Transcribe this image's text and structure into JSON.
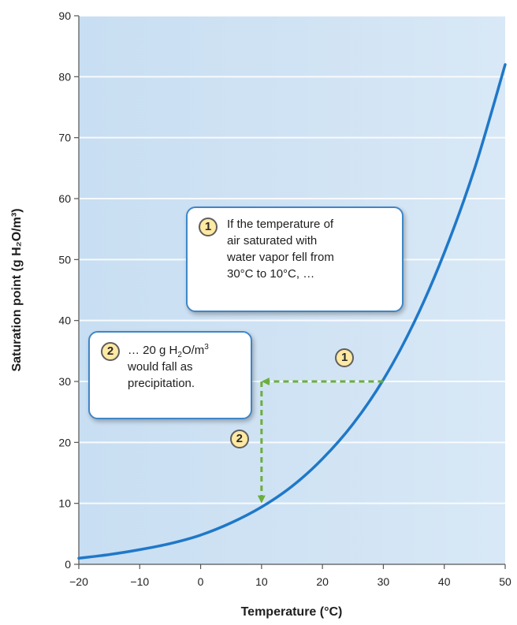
{
  "chart_data": {
    "type": "line",
    "xlabel": "Temperature (°C)",
    "ylabel": "Saturation point (g H₂O/m³)",
    "xlim": [
      -20,
      50
    ],
    "ylim": [
      0,
      90
    ],
    "xticks": [
      "−20",
      "−10",
      "0",
      "10",
      "20",
      "30",
      "40",
      "50"
    ],
    "yticks": [
      "0",
      "10",
      "20",
      "30",
      "40",
      "50",
      "60",
      "70",
      "80",
      "90"
    ],
    "grid": "horizontal",
    "colors": {
      "curve": "#1f78c8",
      "arrows": "#6cae3c",
      "background": "#d2e5f5"
    },
    "series": [
      {
        "x": [
          -20,
          -15,
          -10,
          -5,
          0,
          5,
          10,
          15,
          20,
          25,
          30,
          35,
          40,
          45,
          50
        ],
        "values": [
          1,
          1.6,
          2.4,
          3.4,
          4.8,
          6.8,
          9.4,
          12.8,
          17.3,
          23,
          30.3,
          39.6,
          51.1,
          65,
          82
        ]
      }
    ],
    "arrows": [
      {
        "label": "1",
        "from": [
          30,
          30
        ],
        "to": [
          10,
          30
        ]
      },
      {
        "label": "2",
        "from": [
          10,
          30
        ],
        "to": [
          10,
          10
        ]
      }
    ],
    "annotations": [
      {
        "number": "1",
        "lines": [
          "If the temperature of",
          "air saturated with",
          "water vapor fell from",
          "30°C to 10°C, …"
        ]
      },
      {
        "number": "2",
        "line1_start": "… 20 g H",
        "line1_sub": "2",
        "line1_mid": "O/m",
        "line1_sup": "3",
        "line2": "would fall as",
        "line3": "precipitation."
      }
    ]
  }
}
